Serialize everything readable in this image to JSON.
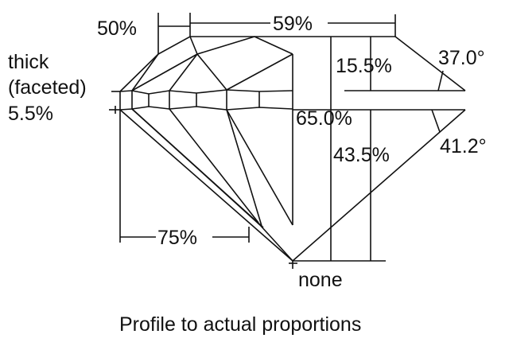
{
  "labels": {
    "crown_facet_pct": "50%",
    "table_pct": "59%",
    "girdle_line1": "thick",
    "girdle_line2": "(faceted)",
    "girdle_pct": "5.5%",
    "crown_height": "15.5%",
    "crown_angle": "37.0°",
    "total_depth": "65.0%",
    "pavilion_depth": "43.5%",
    "pavilion_angle": "41.2°",
    "lower_half_pct": "75%",
    "culet": "none"
  },
  "caption": "Profile to actual proportions"
}
